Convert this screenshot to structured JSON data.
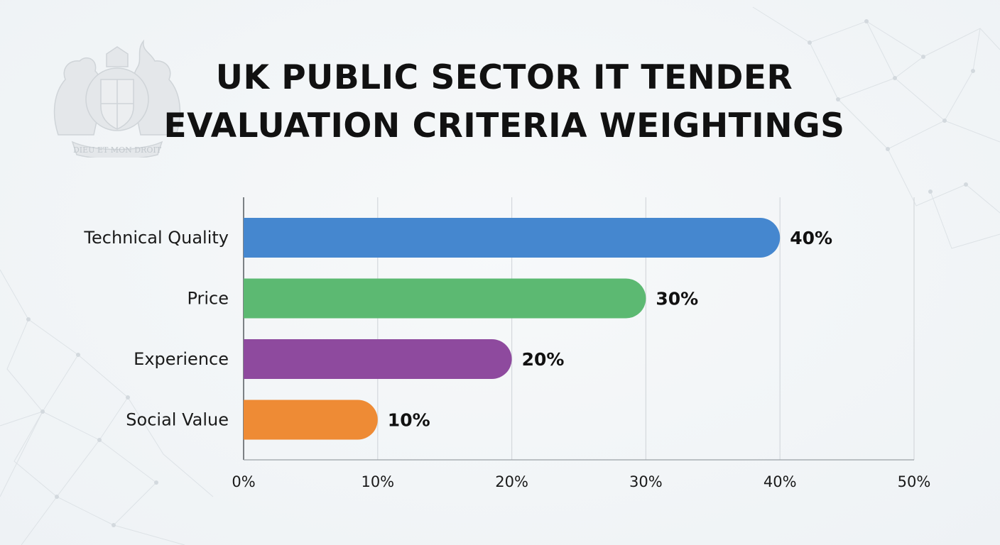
{
  "title_lines": [
    "UK PUBLIC SECTOR IT TENDER",
    "EVALUATION CRITERIA WEIGHTINGS"
  ],
  "crest": {
    "icon": "royal-coat-of-arms-icon",
    "motto": "DIEU ET MON DROIT"
  },
  "chart_data": {
    "type": "bar",
    "orientation": "horizontal",
    "title": "UK PUBLIC SECTOR IT TENDER EVALUATION CRITERIA WEIGHTINGS",
    "categories": [
      "Technical Quality",
      "Price",
      "Experience",
      "Social Value"
    ],
    "values": [
      40,
      30,
      20,
      10
    ],
    "value_labels": [
      "40%",
      "30%",
      "20%",
      "10%"
    ],
    "colors": [
      "#4587cf",
      "#5cb972",
      "#8e4a9e",
      "#ee8b35"
    ],
    "xlim": [
      0,
      50
    ],
    "x_ticks": [
      0,
      10,
      20,
      30,
      40,
      50
    ],
    "x_tick_labels": [
      "0%",
      "10%",
      "20%",
      "30%",
      "40%",
      "50%"
    ],
    "xlabel": "",
    "ylabel": "",
    "grid": "vertical",
    "legend": "none"
  }
}
